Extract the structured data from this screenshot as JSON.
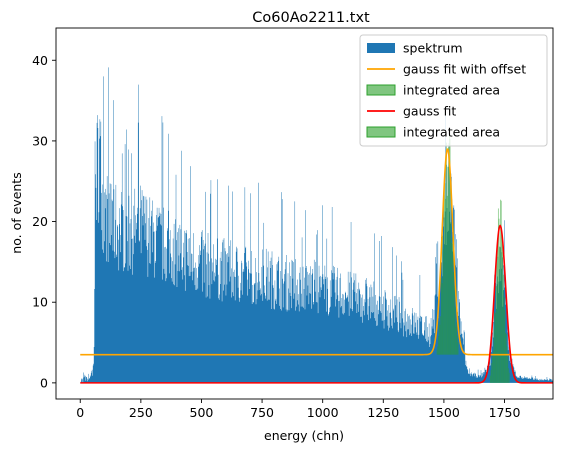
{
  "chart_data": {
    "type": "bar",
    "title": "Co60Ao2211.txt",
    "xlabel": "energy (chn)",
    "ylabel": "no. of events",
    "xlim": [
      -100,
      1950
    ],
    "ylim": [
      -2,
      44
    ],
    "xticks": [
      0,
      250,
      500,
      750,
      1000,
      1250,
      1500,
      1750
    ],
    "yticks": [
      0,
      10,
      20,
      30,
      40
    ],
    "grid": false,
    "legend_position": "top-right",
    "series": [
      {
        "name": "spektrum",
        "kind": "histogram",
        "color": "#1f77b4",
        "envelope": [
          [
            0,
            0
          ],
          [
            10,
            1
          ],
          [
            25,
            0.5
          ],
          [
            40,
            1
          ],
          [
            55,
            2
          ],
          [
            60,
            30
          ],
          [
            70,
            35
          ],
          [
            80,
            37
          ],
          [
            90,
            30
          ],
          [
            100,
            27
          ],
          [
            150,
            25
          ],
          [
            200,
            24
          ],
          [
            250,
            25
          ],
          [
            300,
            23
          ],
          [
            350,
            22
          ],
          [
            400,
            21
          ],
          [
            450,
            20
          ],
          [
            500,
            19
          ],
          [
            550,
            18.5
          ],
          [
            600,
            18
          ],
          [
            650,
            17.5
          ],
          [
            700,
            17
          ],
          [
            750,
            17
          ],
          [
            800,
            16.5
          ],
          [
            850,
            16
          ],
          [
            900,
            15.5
          ],
          [
            950,
            15.5
          ],
          [
            1000,
            15
          ],
          [
            1050,
            14.5
          ],
          [
            1100,
            14
          ],
          [
            1150,
            13.5
          ],
          [
            1200,
            13
          ],
          [
            1250,
            12
          ],
          [
            1300,
            11
          ],
          [
            1350,
            10
          ],
          [
            1400,
            9
          ],
          [
            1440,
            8
          ],
          [
            1470,
            12
          ],
          [
            1500,
            25
          ],
          [
            1520,
            30
          ],
          [
            1540,
            25
          ],
          [
            1560,
            12
          ],
          [
            1580,
            5
          ],
          [
            1600,
            1.5
          ],
          [
            1650,
            1
          ],
          [
            1690,
            3
          ],
          [
            1710,
            15
          ],
          [
            1730,
            19
          ],
          [
            1750,
            15
          ],
          [
            1770,
            4
          ],
          [
            1800,
            1
          ],
          [
            1900,
            0.5
          ],
          [
            1950,
            0.5
          ]
        ]
      },
      {
        "name": "gauss fit with offset",
        "kind": "gauss",
        "color": "#ffa500",
        "offset": 3.5,
        "amplitude": 25.5,
        "mu": 1515,
        "sigma": 22
      },
      {
        "name": "integrated area",
        "kind": "area",
        "color": "#2ca02c",
        "x_range": [
          1470,
          1560
        ],
        "base": 3.5,
        "peak": 31
      },
      {
        "name": "gauss fit",
        "kind": "gauss",
        "color": "#ff0000",
        "offset": 0,
        "amplitude": 19.5,
        "mu": 1732,
        "sigma": 23
      },
      {
        "name": "integrated area",
        "kind": "area",
        "color": "#2ca02c",
        "x_range": [
          1690,
          1770
        ],
        "base": 0,
        "peak": 22
      }
    ],
    "legend": [
      "spektrum",
      "gauss fit with offset",
      "integrated area",
      "gauss fit",
      "integrated area"
    ]
  }
}
